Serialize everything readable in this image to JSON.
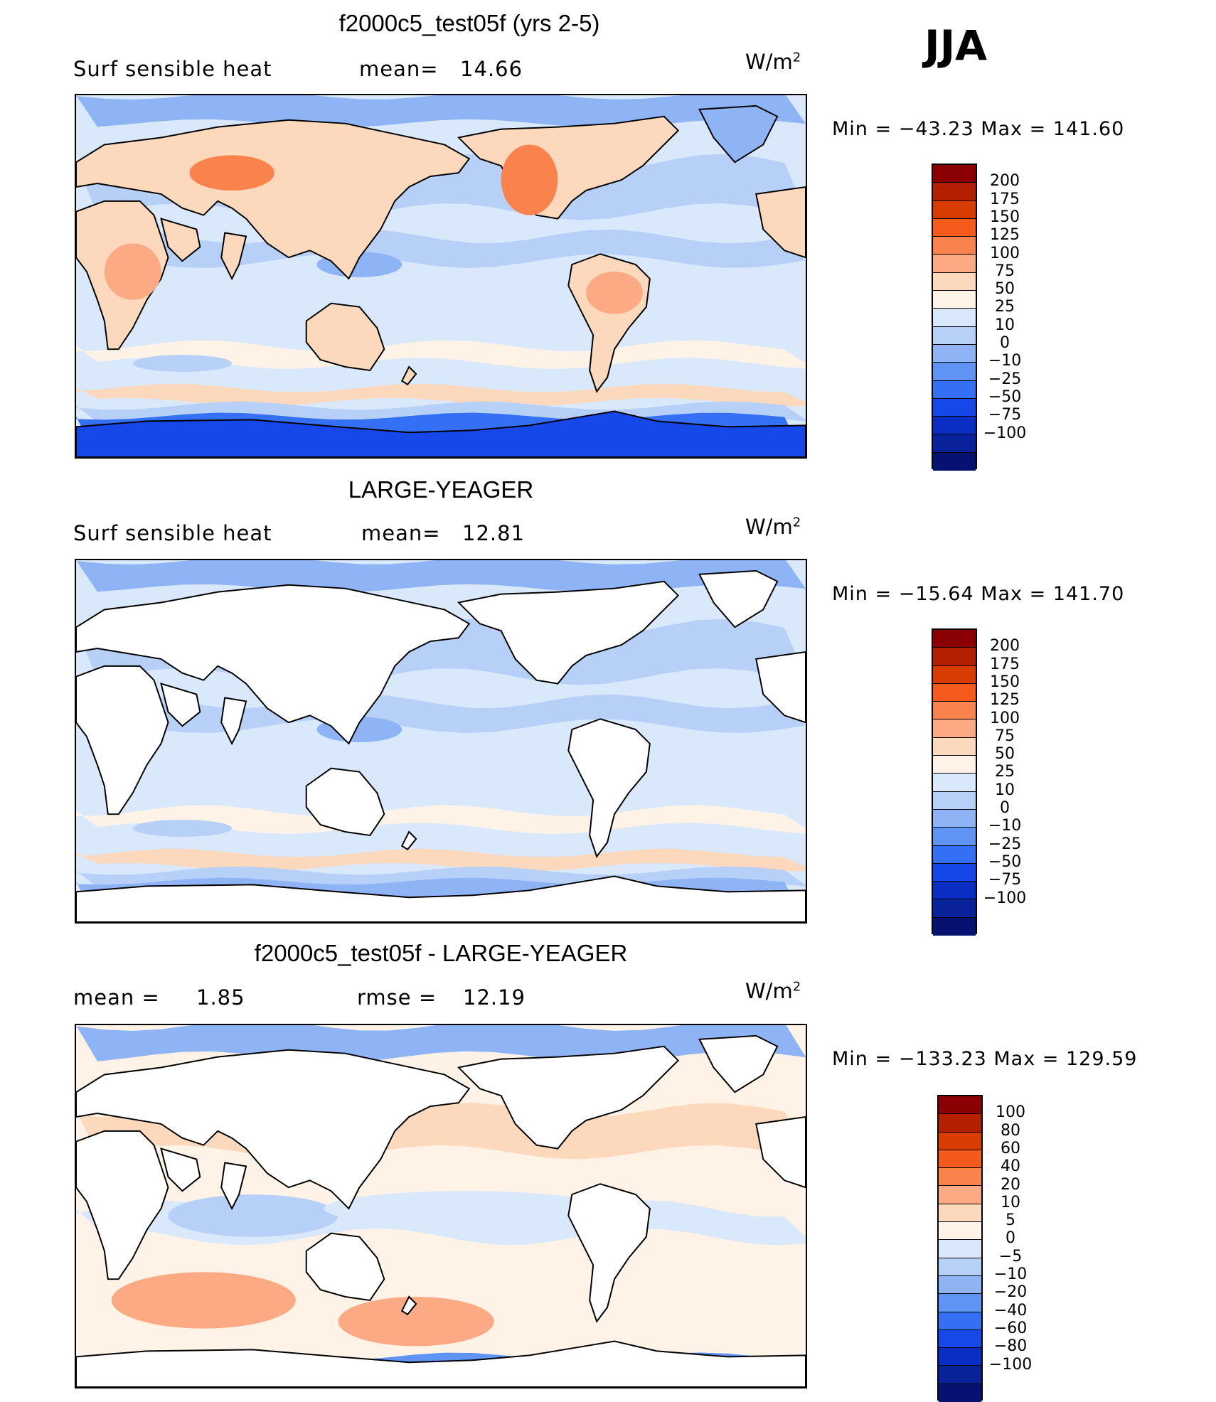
{
  "season": "JJA",
  "panels": [
    {
      "title": "f2000c5_test05f (yrs 2-5)",
      "left_label": "Surf  sensible  heat",
      "stat1_label": "mean=",
      "stat1_value": "14.66",
      "stat2_label": "",
      "stat2_value": "",
      "units": "W/m",
      "units_sup": "2",
      "min_label": "Min  =  −43.23  Max  =  141.60",
      "colorbar": {
        "colors": [
          "#8b0000",
          "#b22000",
          "#d83c00",
          "#f45a1c",
          "#fa824c",
          "#fcaa84",
          "#fcd9bc",
          "#fef3e6",
          "#d9e9fb",
          "#b6d0f8",
          "#8fb4f5",
          "#6094f4",
          "#3370f4",
          "#1647e8",
          "#0a2ec4",
          "#08229a",
          "#06126f"
        ],
        "ticks": [
          "200",
          "175",
          "150",
          "125",
          "100",
          "75",
          "50",
          "25",
          "10",
          "0",
          "−10",
          "−25",
          "−50",
          "−75",
          "−100"
        ]
      },
      "map_style": "field"
    },
    {
      "title": "LARGE-YEAGER",
      "left_label": "Surf  sensible  heat",
      "stat1_label": "mean=",
      "stat1_value": "12.81",
      "stat2_label": "",
      "stat2_value": "",
      "units": "W/m",
      "units_sup": "2",
      "min_label": "Min  =  −15.64  Max  =  141.70",
      "colorbar": {
        "colors": [
          "#8b0000",
          "#b22000",
          "#d83c00",
          "#f45a1c",
          "#fa824c",
          "#fcaa84",
          "#fcd9bc",
          "#fef3e6",
          "#d9e9fb",
          "#b6d0f8",
          "#8fb4f5",
          "#6094f4",
          "#3370f4",
          "#1647e8",
          "#0a2ec4",
          "#08229a",
          "#06126f"
        ],
        "ticks": [
          "200",
          "175",
          "150",
          "125",
          "100",
          "75",
          "50",
          "25",
          "10",
          "0",
          "−10",
          "−25",
          "−50",
          "−75",
          "−100"
        ]
      },
      "map_style": "ocean"
    },
    {
      "title": "f2000c5_test05f - LARGE-YEAGER",
      "left_label": "mean  =",
      "stat1_label": "1.85",
      "stat1_value": "",
      "stat2_label": "rmse  =",
      "stat2_value": "12.19",
      "units": "W/m",
      "units_sup": "2",
      "min_label": "Min  =  −133.23  Max  =  129.59",
      "colorbar": {
        "colors": [
          "#8b0000",
          "#b22000",
          "#d83c00",
          "#f45a1c",
          "#fa824c",
          "#fcaa84",
          "#fcd9bc",
          "#fef3e6",
          "#d9e9fb",
          "#b6d0f8",
          "#8fb4f5",
          "#6094f4",
          "#3370f4",
          "#1647e8",
          "#0a2ec4",
          "#08229a",
          "#06126f"
        ],
        "ticks": [
          "100",
          "80",
          "60",
          "40",
          "20",
          "10",
          "5",
          "0",
          "−5",
          "−10",
          "−20",
          "−40",
          "−60",
          "−80",
          "−100"
        ]
      },
      "map_style": "diff"
    }
  ]
}
